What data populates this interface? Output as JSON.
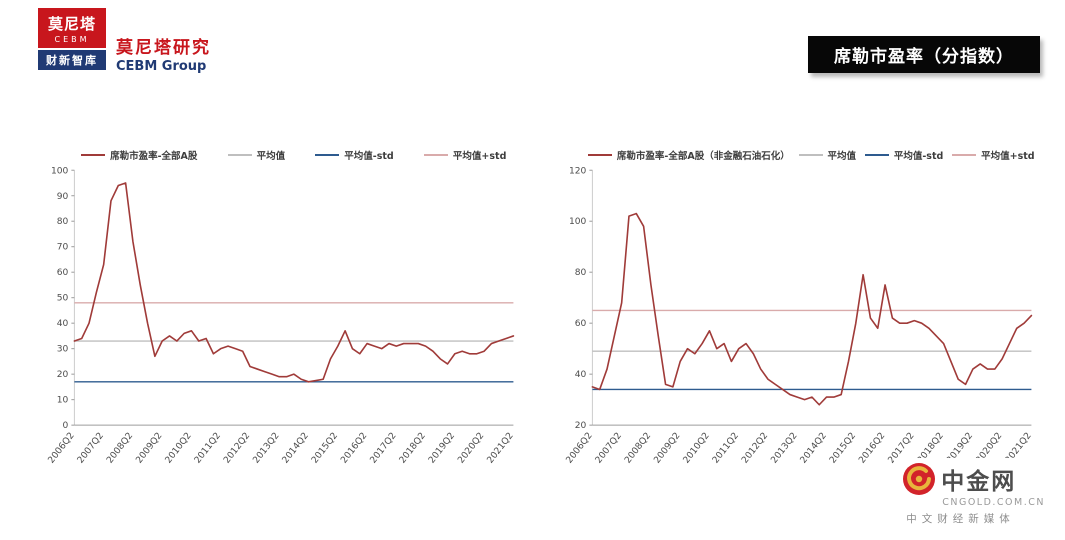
{
  "header": {
    "logo": {
      "line1": "莫尼塔",
      "line2": "CEBM",
      "line3": "财新智库"
    },
    "brand_title": "莫尼塔研究",
    "brand_subtitle": "CEBM Group",
    "report_title": "席勒市盈率（分指数）"
  },
  "colors": {
    "series_red": "#A03B39",
    "mean_gray": "#BFBFBF",
    "minus_std_blue": "#2E5B8F",
    "plus_std_pink": "#D9ABAB",
    "logo_red": "#C8161D",
    "logo_navy": "#203A74",
    "title_bar_black": "#070707"
  },
  "chart_data": [
    {
      "type": "line",
      "title": "",
      "x_labels": [
        "2006Q2",
        "2007Q2",
        "2008Q2",
        "2009Q2",
        "2010Q2",
        "2011Q2",
        "2012Q2",
        "2013Q2",
        "2014Q2",
        "2015Q2",
        "2016Q2",
        "2017Q2",
        "2018Q2",
        "2019Q2",
        "2020Q2",
        "2021Q2"
      ],
      "points_per_label": 4,
      "ylim": [
        0,
        100
      ],
      "y_ticks": [
        0,
        10,
        20,
        30,
        40,
        50,
        60,
        70,
        80,
        90,
        100
      ],
      "grid": false,
      "legend_position": "top",
      "series": [
        {
          "name": "席勒市盈率-全部A股",
          "color": "#A03B39",
          "values": [
            33,
            34,
            40,
            52,
            63,
            88,
            94,
            95,
            72,
            55,
            40,
            27,
            33,
            35,
            33,
            36,
            37,
            33,
            34,
            28,
            30,
            31,
            30,
            29,
            23,
            22,
            21,
            20,
            19,
            19,
            20,
            18,
            17,
            17.5,
            18,
            26,
            31,
            37,
            30,
            28,
            32,
            31,
            30,
            32,
            31,
            32,
            32,
            32,
            31,
            29,
            26,
            24,
            28,
            29,
            28,
            28,
            29,
            32,
            33,
            34,
            35
          ]
        },
        {
          "name": "平均值",
          "color": "#BFBFBF",
          "hline": true,
          "value": 33
        },
        {
          "name": "平均值-std",
          "color": "#2E5B8F",
          "hline": true,
          "value": 17
        },
        {
          "name": "平均值+std",
          "color": "#D9ABAB",
          "hline": true,
          "value": 48
        }
      ]
    },
    {
      "type": "line",
      "title": "",
      "x_labels": [
        "2006Q2",
        "2007Q2",
        "2008Q2",
        "2009Q2",
        "2010Q2",
        "2011Q2",
        "2012Q2",
        "2013Q2",
        "2014Q2",
        "2015Q2",
        "2016Q2",
        "2017Q2",
        "2018Q2",
        "2019Q2",
        "2020Q2",
        "2021Q2"
      ],
      "points_per_label": 4,
      "ylim": [
        20,
        120
      ],
      "y_ticks": [
        20,
        40,
        60,
        80,
        100,
        120
      ],
      "grid": false,
      "legend_position": "top",
      "series": [
        {
          "name": "席勒市盈率-全部A股（非金融石油石化）",
          "color": "#A03B39",
          "values": [
            35,
            34,
            42,
            55,
            68,
            102,
            103,
            98,
            75,
            55,
            36,
            35,
            45,
            50,
            48,
            52,
            57,
            50,
            52,
            45,
            50,
            52,
            48,
            42,
            38,
            36,
            34,
            32,
            31,
            30,
            31,
            28,
            31,
            31,
            32,
            45,
            60,
            79,
            62,
            58,
            75,
            62,
            60,
            60,
            61,
            60,
            58,
            55,
            52,
            45,
            38,
            36,
            42,
            44,
            42,
            42,
            46,
            52,
            58,
            60,
            63
          ]
        },
        {
          "name": "平均值",
          "color": "#BFBFBF",
          "hline": true,
          "value": 49
        },
        {
          "name": "平均值-std",
          "color": "#2E5B8F",
          "hline": true,
          "value": 34
        },
        {
          "name": "平均值+std",
          "color": "#D9ABAB",
          "hline": true,
          "value": 65
        }
      ]
    }
  ],
  "watermark": {
    "name": "中金网",
    "domain": "CNGOLD.COM.CN",
    "tagline": "中文财经新媒体"
  }
}
